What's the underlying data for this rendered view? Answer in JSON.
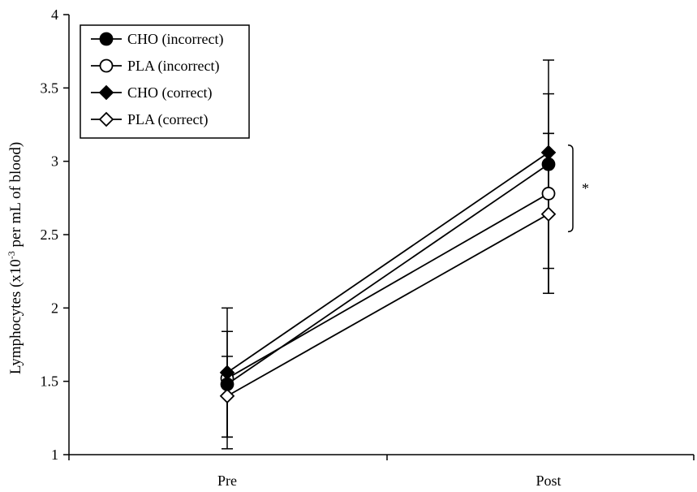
{
  "chart_data": {
    "type": "line",
    "xlabel": "",
    "ylabel_main": "Lymphocytes (x10",
    "ylabel_sup": "-3",
    "ylabel_tail": " per mL of blood)",
    "categories": [
      "Pre",
      "Post"
    ],
    "ylim": [
      1,
      4
    ],
    "yticks": [
      "1",
      "1.5",
      "2",
      "2.5",
      "3",
      "3.5",
      "4"
    ],
    "legend_position": "top-left",
    "annotation": "*",
    "series": [
      {
        "name": "CHO (incorrect)",
        "marker": "circle-filled",
        "values": [
          1.48,
          2.98
        ],
        "err_upper": [
          1.84,
          3.46
        ],
        "err_lower": [
          1.12,
          2.1
        ]
      },
      {
        "name": "PLA (incorrect)",
        "marker": "circle-open",
        "values": [
          1.52,
          2.78
        ],
        "err_upper": [
          1.67,
          3.19
        ],
        "err_lower": [
          1.12,
          2.1
        ]
      },
      {
        "name": "CHO (correct)",
        "marker": "diamond-filled",
        "values": [
          1.56,
          3.06
        ],
        "err_upper": [
          2.0,
          3.69
        ],
        "err_lower": [
          1.12,
          2.1
        ]
      },
      {
        "name": "PLA (correct)",
        "marker": "diamond-open",
        "values": [
          1.4,
          2.64
        ],
        "err_upper": [
          1.57,
          3.19
        ],
        "err_lower": [
          1.04,
          2.27
        ]
      }
    ]
  }
}
